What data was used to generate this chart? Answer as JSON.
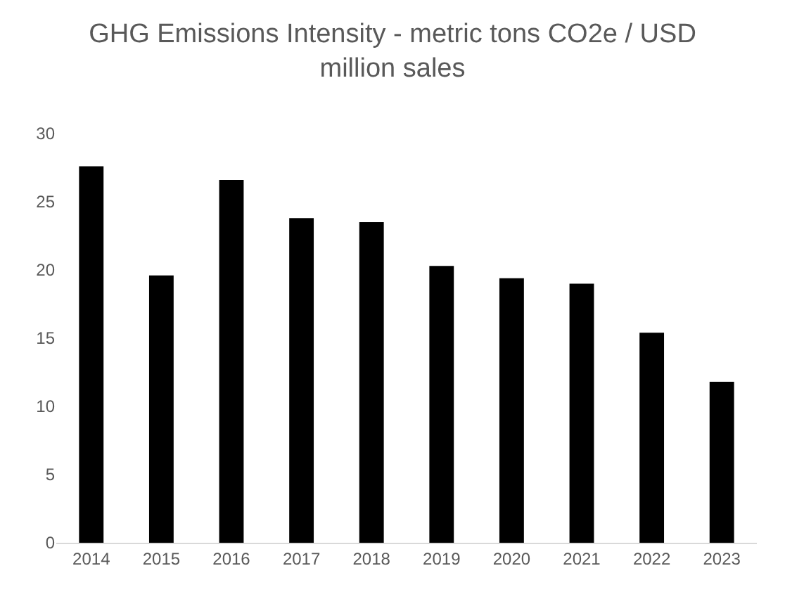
{
  "chart_data": {
    "type": "bar",
    "title": "GHG Emissions Intensity - metric tons CO2e / USD million sales",
    "categories": [
      "2014",
      "2015",
      "2016",
      "2017",
      "2018",
      "2019",
      "2020",
      "2021",
      "2022",
      "2023"
    ],
    "values": [
      27.6,
      19.6,
      26.6,
      23.8,
      23.5,
      20.3,
      19.4,
      19.0,
      15.4,
      11.8
    ],
    "color": "#000000",
    "ylim": [
      0,
      30
    ],
    "yticks": [
      0,
      5,
      10,
      15,
      20,
      25,
      30
    ],
    "grid": false
  }
}
